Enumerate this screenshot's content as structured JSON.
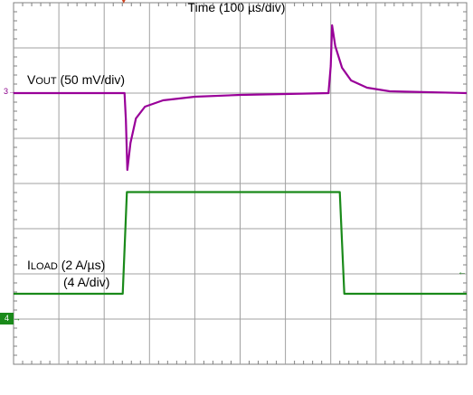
{
  "labels": {
    "vout_prefix": "V",
    "vout_sub": "OUT",
    "vout_rest": " (50 mV/div)",
    "iload_prefix": "I",
    "iload_sub": "LOAD",
    "iload_rest": " (2 A/µs)",
    "iload_scale": "(4 A/div)",
    "time": "Time (100 µs/div)",
    "ch3_marker": "3",
    "ch4_marker": "4"
  },
  "colors": {
    "vout": "#990099",
    "iload": "#1a8a1a",
    "grid": "#a0a0a0",
    "frame": "#808080"
  },
  "chart_data": {
    "type": "line",
    "title": "",
    "xlabel": "Time (100 µs/div)",
    "grid": true,
    "x_unit": "µs",
    "x_range": [
      0,
      1000
    ],
    "series": [
      {
        "name": "VOUT (50 mV/div)",
        "unit": "mV",
        "x": [
          0,
          245,
          248,
          251,
          258,
          270,
          290,
          330,
          400,
          500,
          600,
          695,
          700,
          703,
          710,
          725,
          745,
          780,
          830,
          1000
        ],
        "y": [
          0,
          0,
          -30,
          -85,
          -55,
          -28,
          -15,
          -8,
          -4,
          -2,
          -1,
          0,
          30,
          75,
          52,
          28,
          14,
          6,
          2,
          0
        ]
      },
      {
        "name": "ILOAD (2 A/µs) (4 A/div)",
        "unit": "A",
        "x": [
          0,
          241,
          250,
          720,
          730,
          1000
        ],
        "y": [
          0,
          0,
          9,
          9,
          0,
          0
        ]
      }
    ]
  }
}
